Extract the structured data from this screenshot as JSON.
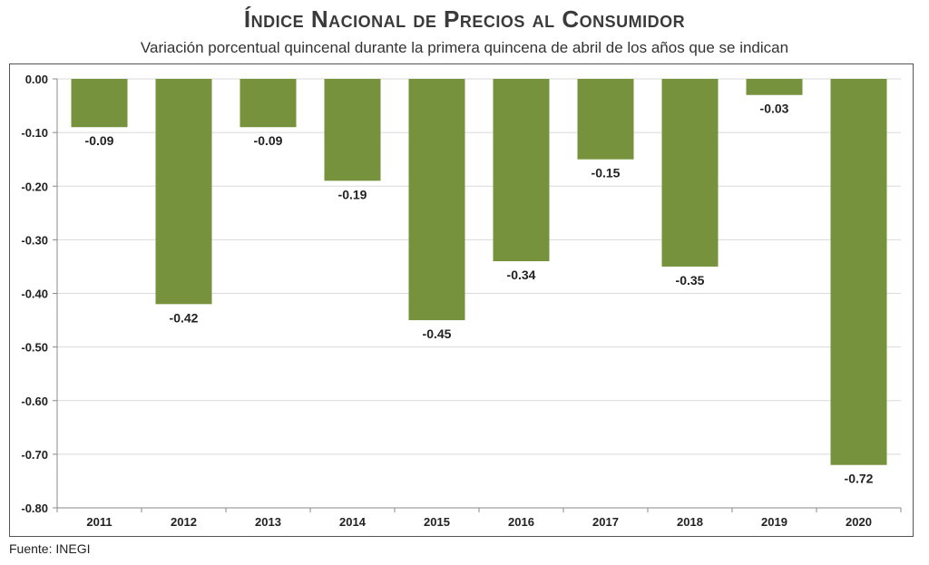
{
  "title": "Índice Nacional de Precios al Consumidor",
  "subtitle": "Variación porcentual quincenal durante la primera quincena de abril de los años que se indican",
  "source": "Fuente: INEGI",
  "colors": {
    "bar": "#76923c",
    "grid": "#d9d9d9",
    "axis": "#888888"
  },
  "chart_data": {
    "type": "bar",
    "title": "Índice Nacional de Precios al Consumidor",
    "subtitle": "Variación porcentual quincenal durante la primera quincena de abril de los años que se indican",
    "categories": [
      "2011",
      "2012",
      "2013",
      "2014",
      "2015",
      "2016",
      "2017",
      "2018",
      "2019",
      "2020"
    ],
    "values": [
      -0.09,
      -0.42,
      -0.09,
      -0.19,
      -0.45,
      -0.34,
      -0.15,
      -0.35,
      -0.03,
      -0.72
    ],
    "value_labels": [
      "-0.09",
      "-0.42",
      "-0.09",
      "-0.19",
      "-0.45",
      "-0.34",
      "-0.15",
      "-0.35",
      "-0.03",
      "-0.72"
    ],
    "ylim": [
      -0.8,
      0.0
    ],
    "yticks": [
      0.0,
      -0.1,
      -0.2,
      -0.3,
      -0.4,
      -0.5,
      -0.6,
      -0.7,
      -0.8
    ],
    "ytick_labels": [
      "0.00",
      "-0.10",
      "-0.20",
      "-0.30",
      "-0.40",
      "-0.50",
      "-0.60",
      "-0.70",
      "-0.80"
    ],
    "xlabel": "",
    "ylabel": "",
    "grid": true,
    "legend": false
  }
}
